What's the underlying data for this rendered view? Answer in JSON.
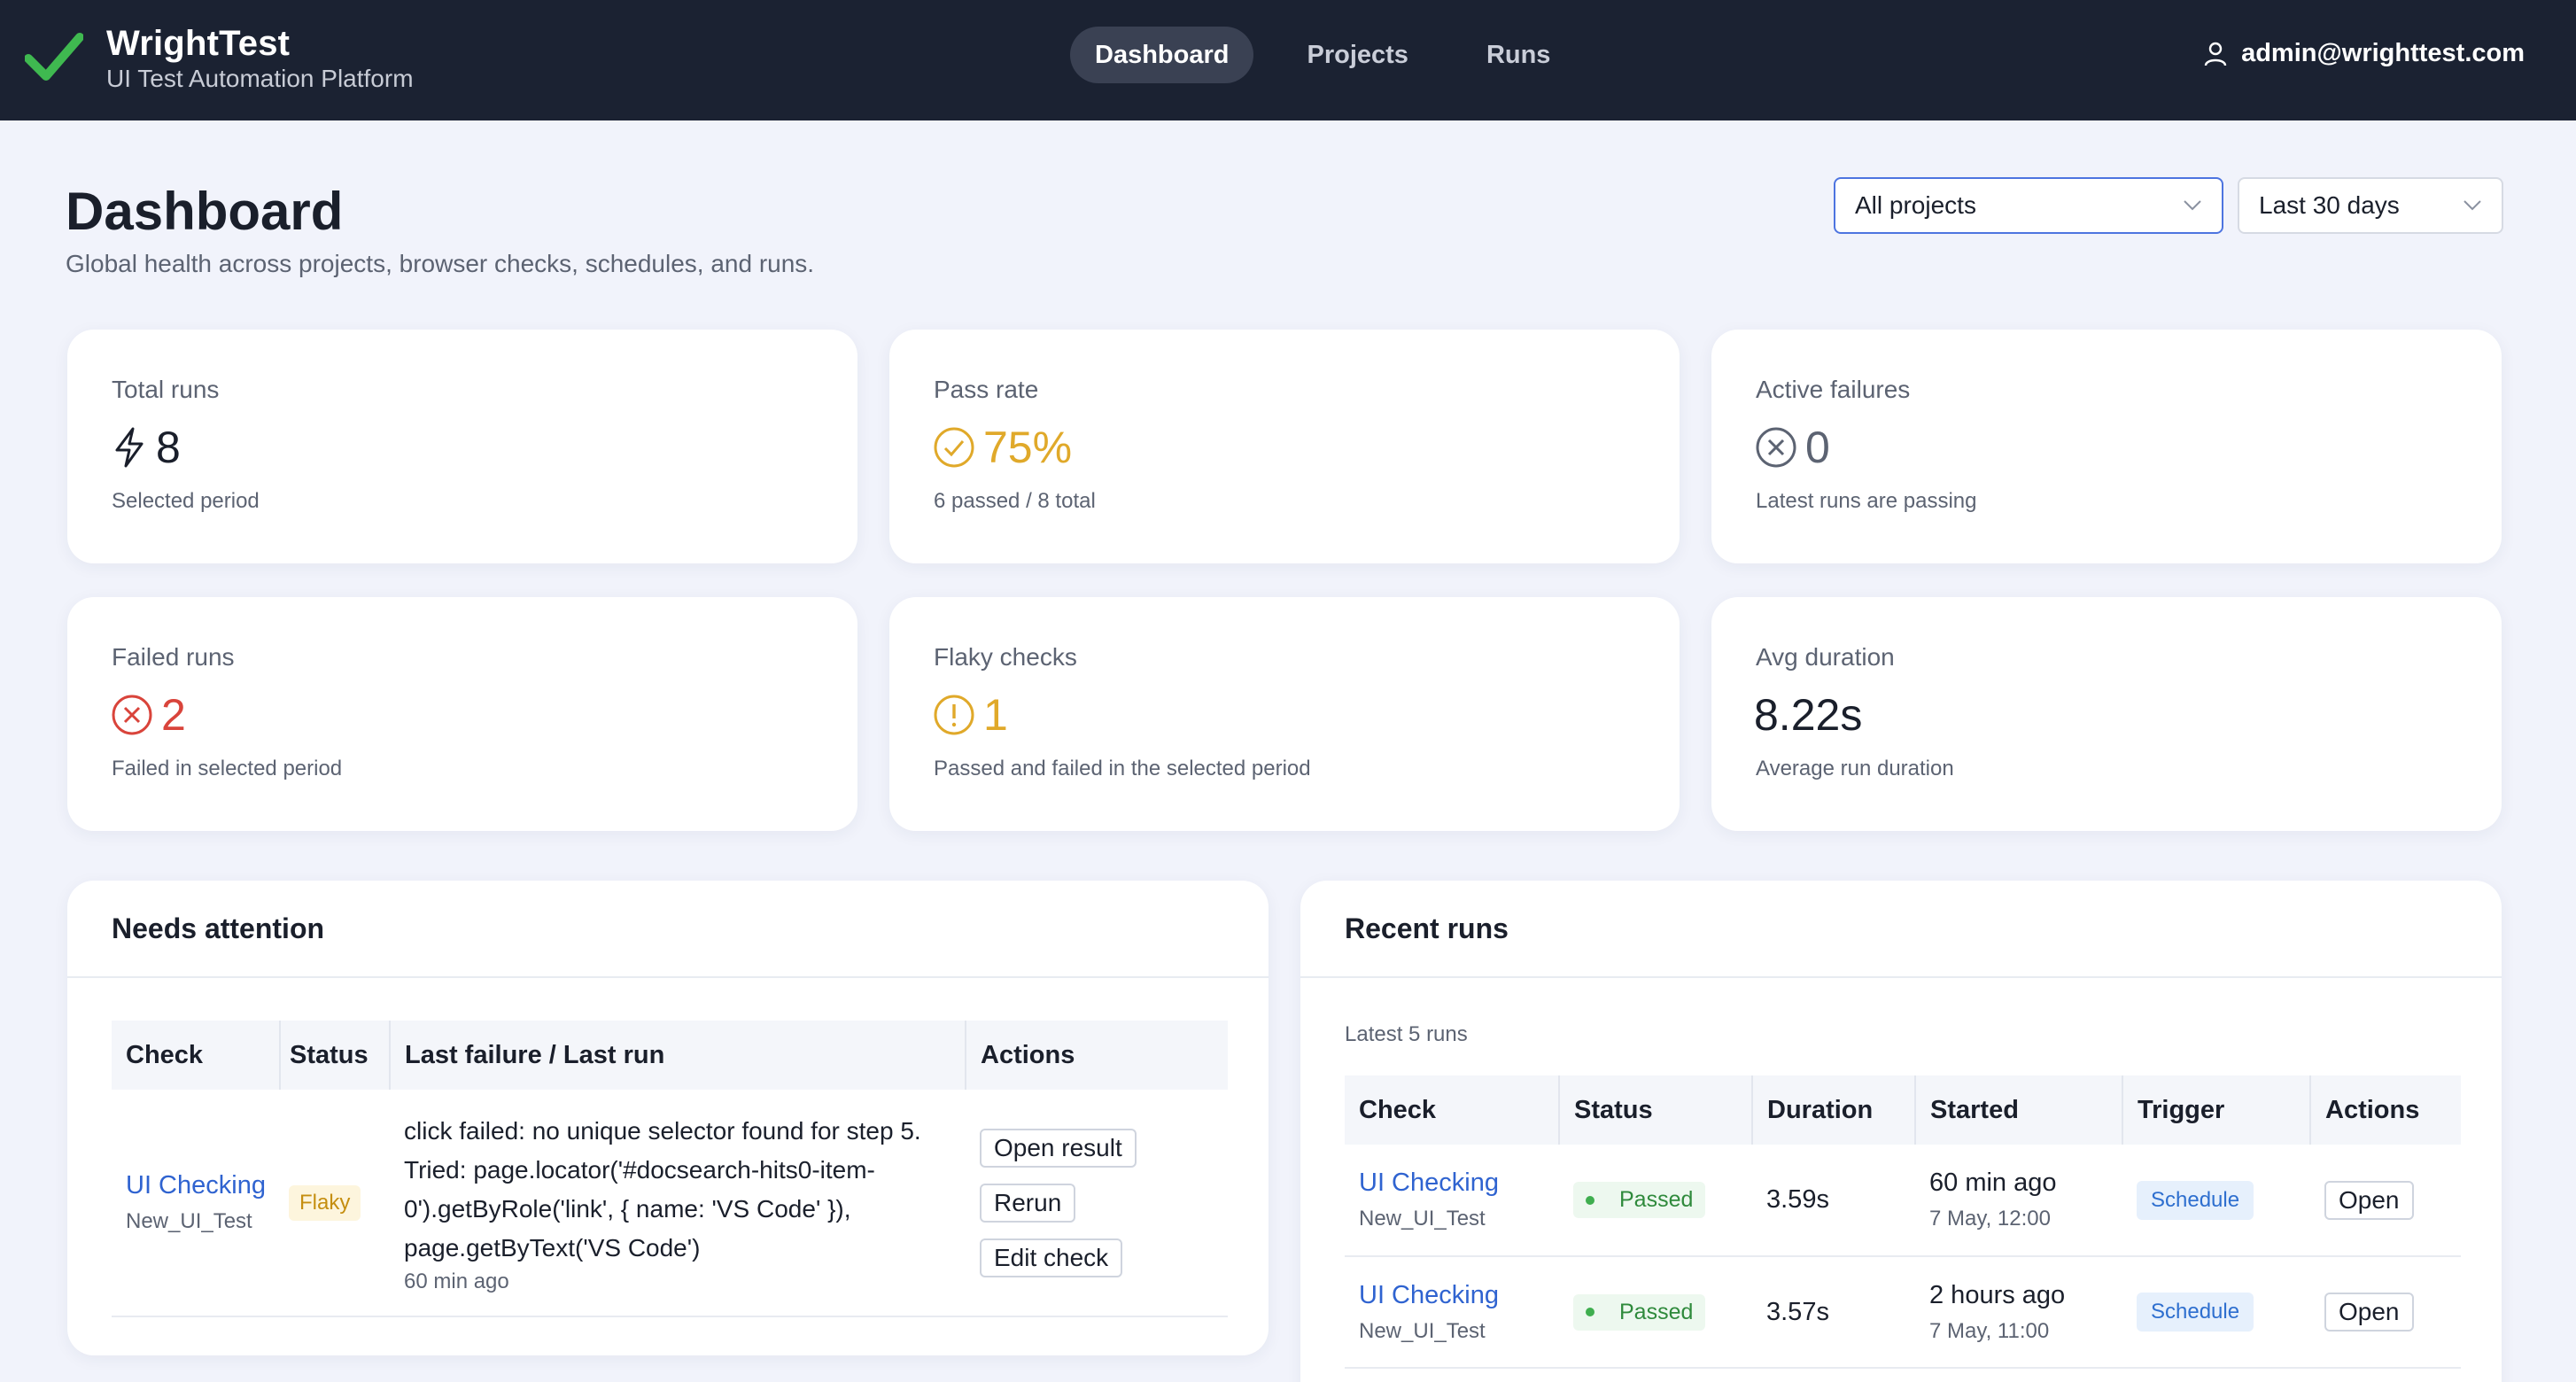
{
  "app": {
    "name": "WrightTest",
    "subtitle": "UI Test Automation Platform",
    "accent_color": "#3fb950"
  },
  "nav": {
    "tabs": [
      {
        "label": "Dashboard",
        "active": true
      },
      {
        "label": "Projects",
        "active": false
      },
      {
        "label": "Runs",
        "active": false
      }
    ]
  },
  "user": {
    "email": "admin@wrighttest.com",
    "icon": "user-icon"
  },
  "header": {
    "title": "Dashboard",
    "subtitle": "Global health across projects, browser checks, schedules, and runs."
  },
  "filters": {
    "project": "All projects",
    "range": "Last 30 days"
  },
  "stats": [
    {
      "label": "Total runs",
      "value": "8",
      "note": "Selected period",
      "icon": "bolt-icon",
      "color": "#1a1f2b"
    },
    {
      "label": "Pass rate",
      "value": "75%",
      "note": "6 passed / 8 total",
      "icon": "check-circle-icon",
      "color": "#e0a92a"
    },
    {
      "label": "Active failures",
      "value": "0",
      "note": "Latest runs are passing",
      "icon": "x-circle-icon",
      "color": "#5c6372"
    },
    {
      "label": "Failed runs",
      "value": "2",
      "note": "Failed in selected period",
      "icon": "x-circle-icon",
      "color": "#d9443b"
    },
    {
      "label": "Flaky checks",
      "value": "1",
      "note": "Passed and failed in the selected period",
      "icon": "alert-circle-icon",
      "color": "#e0a92a"
    },
    {
      "label": "Avg duration",
      "value": "8.22s",
      "note": "Average run duration",
      "icon": "",
      "color": "#1a1f2b"
    }
  ],
  "attention": {
    "title": "Needs attention",
    "columns": [
      "Check",
      "Status",
      "Last failure / Last run",
      "Actions"
    ],
    "rows": [
      {
        "check": "UI Checking",
        "project": "New_UI_Test",
        "status": "Flaky",
        "failure": "click failed: no unique selector found for step 5. Tried: page.locator('#docsearch-hits0-item-0').getByRole('link', { name: 'VS Code' }), page.getByText('VS Code')",
        "last_run": "60 min ago",
        "actions": [
          "Open result",
          "Rerun",
          "Edit check"
        ]
      }
    ]
  },
  "recent": {
    "title": "Recent runs",
    "caption": "Latest 5 runs",
    "columns": [
      "Check",
      "Status",
      "Duration",
      "Started",
      "Trigger",
      "Actions"
    ],
    "rows": [
      {
        "check": "UI Checking",
        "project": "New_UI_Test",
        "status": "Passed",
        "duration": "3.59s",
        "started": "60 min ago",
        "started_at": "7 May, 12:00",
        "trigger": "Schedule",
        "action": "Open"
      },
      {
        "check": "UI Checking",
        "project": "New_UI_Test",
        "status": "Passed",
        "duration": "3.57s",
        "started": "2 hours ago",
        "started_at": "7 May, 11:00",
        "trigger": "Schedule",
        "action": "Open"
      }
    ]
  }
}
